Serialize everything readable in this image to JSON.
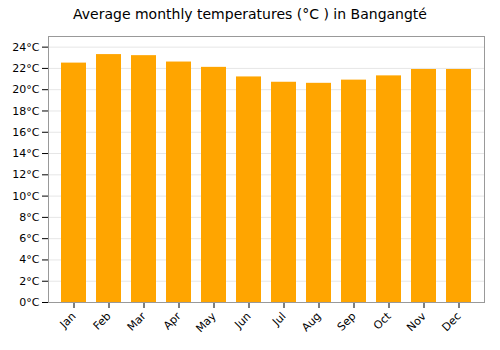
{
  "chart_data": {
    "type": "bar",
    "title": "Average monthly temperatures (°C ) in Bangangté",
    "categories": [
      "Jan",
      "Feb",
      "Mar",
      "Apr",
      "May",
      "Jun",
      "Jul",
      "Aug",
      "Sep",
      "Oct",
      "Nov",
      "Dec"
    ],
    "values": [
      22.5,
      23.3,
      23.2,
      22.6,
      22.1,
      21.2,
      20.7,
      20.6,
      20.9,
      21.3,
      21.9,
      21.9
    ],
    "color": "#FFA500",
    "ylim": [
      0,
      25
    ],
    "yticks": [
      {
        "value": 0,
        "label": "0°C"
      },
      {
        "value": 2,
        "label": "2°C"
      },
      {
        "value": 4,
        "label": "4°C"
      },
      {
        "value": 6,
        "label": "6°C"
      },
      {
        "value": 8,
        "label": "8°C"
      },
      {
        "value": 10,
        "label": "10°C"
      },
      {
        "value": 12,
        "label": "12°C"
      },
      {
        "value": 14,
        "label": "14°C"
      },
      {
        "value": 16,
        "label": "16°C"
      },
      {
        "value": 18,
        "label": "18°C"
      },
      {
        "value": 20,
        "label": "20°C"
      },
      {
        "value": 22,
        "label": "22°C"
      },
      {
        "value": 24,
        "label": "24°C"
      }
    ],
    "grid": true
  }
}
